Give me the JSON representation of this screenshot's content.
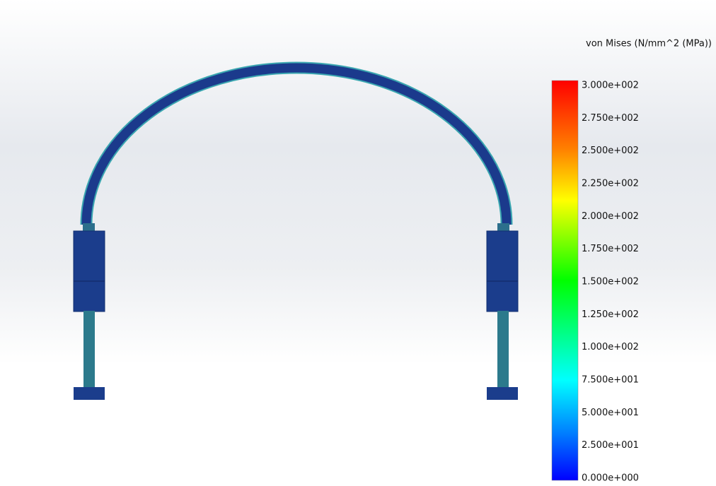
{
  "legend": {
    "title": "von Mises (N/mm^2 (MPa))",
    "labels": [
      "3.000e+002",
      "2.750e+002",
      "2.500e+002",
      "2.250e+002",
      "2.000e+002",
      "1.750e+002",
      "1.500e+002",
      "1.250e+002",
      "1.000e+002",
      "7.500e+001",
      "5.000e+001",
      "2.500e+001",
      "0.000e+000"
    ]
  }
}
